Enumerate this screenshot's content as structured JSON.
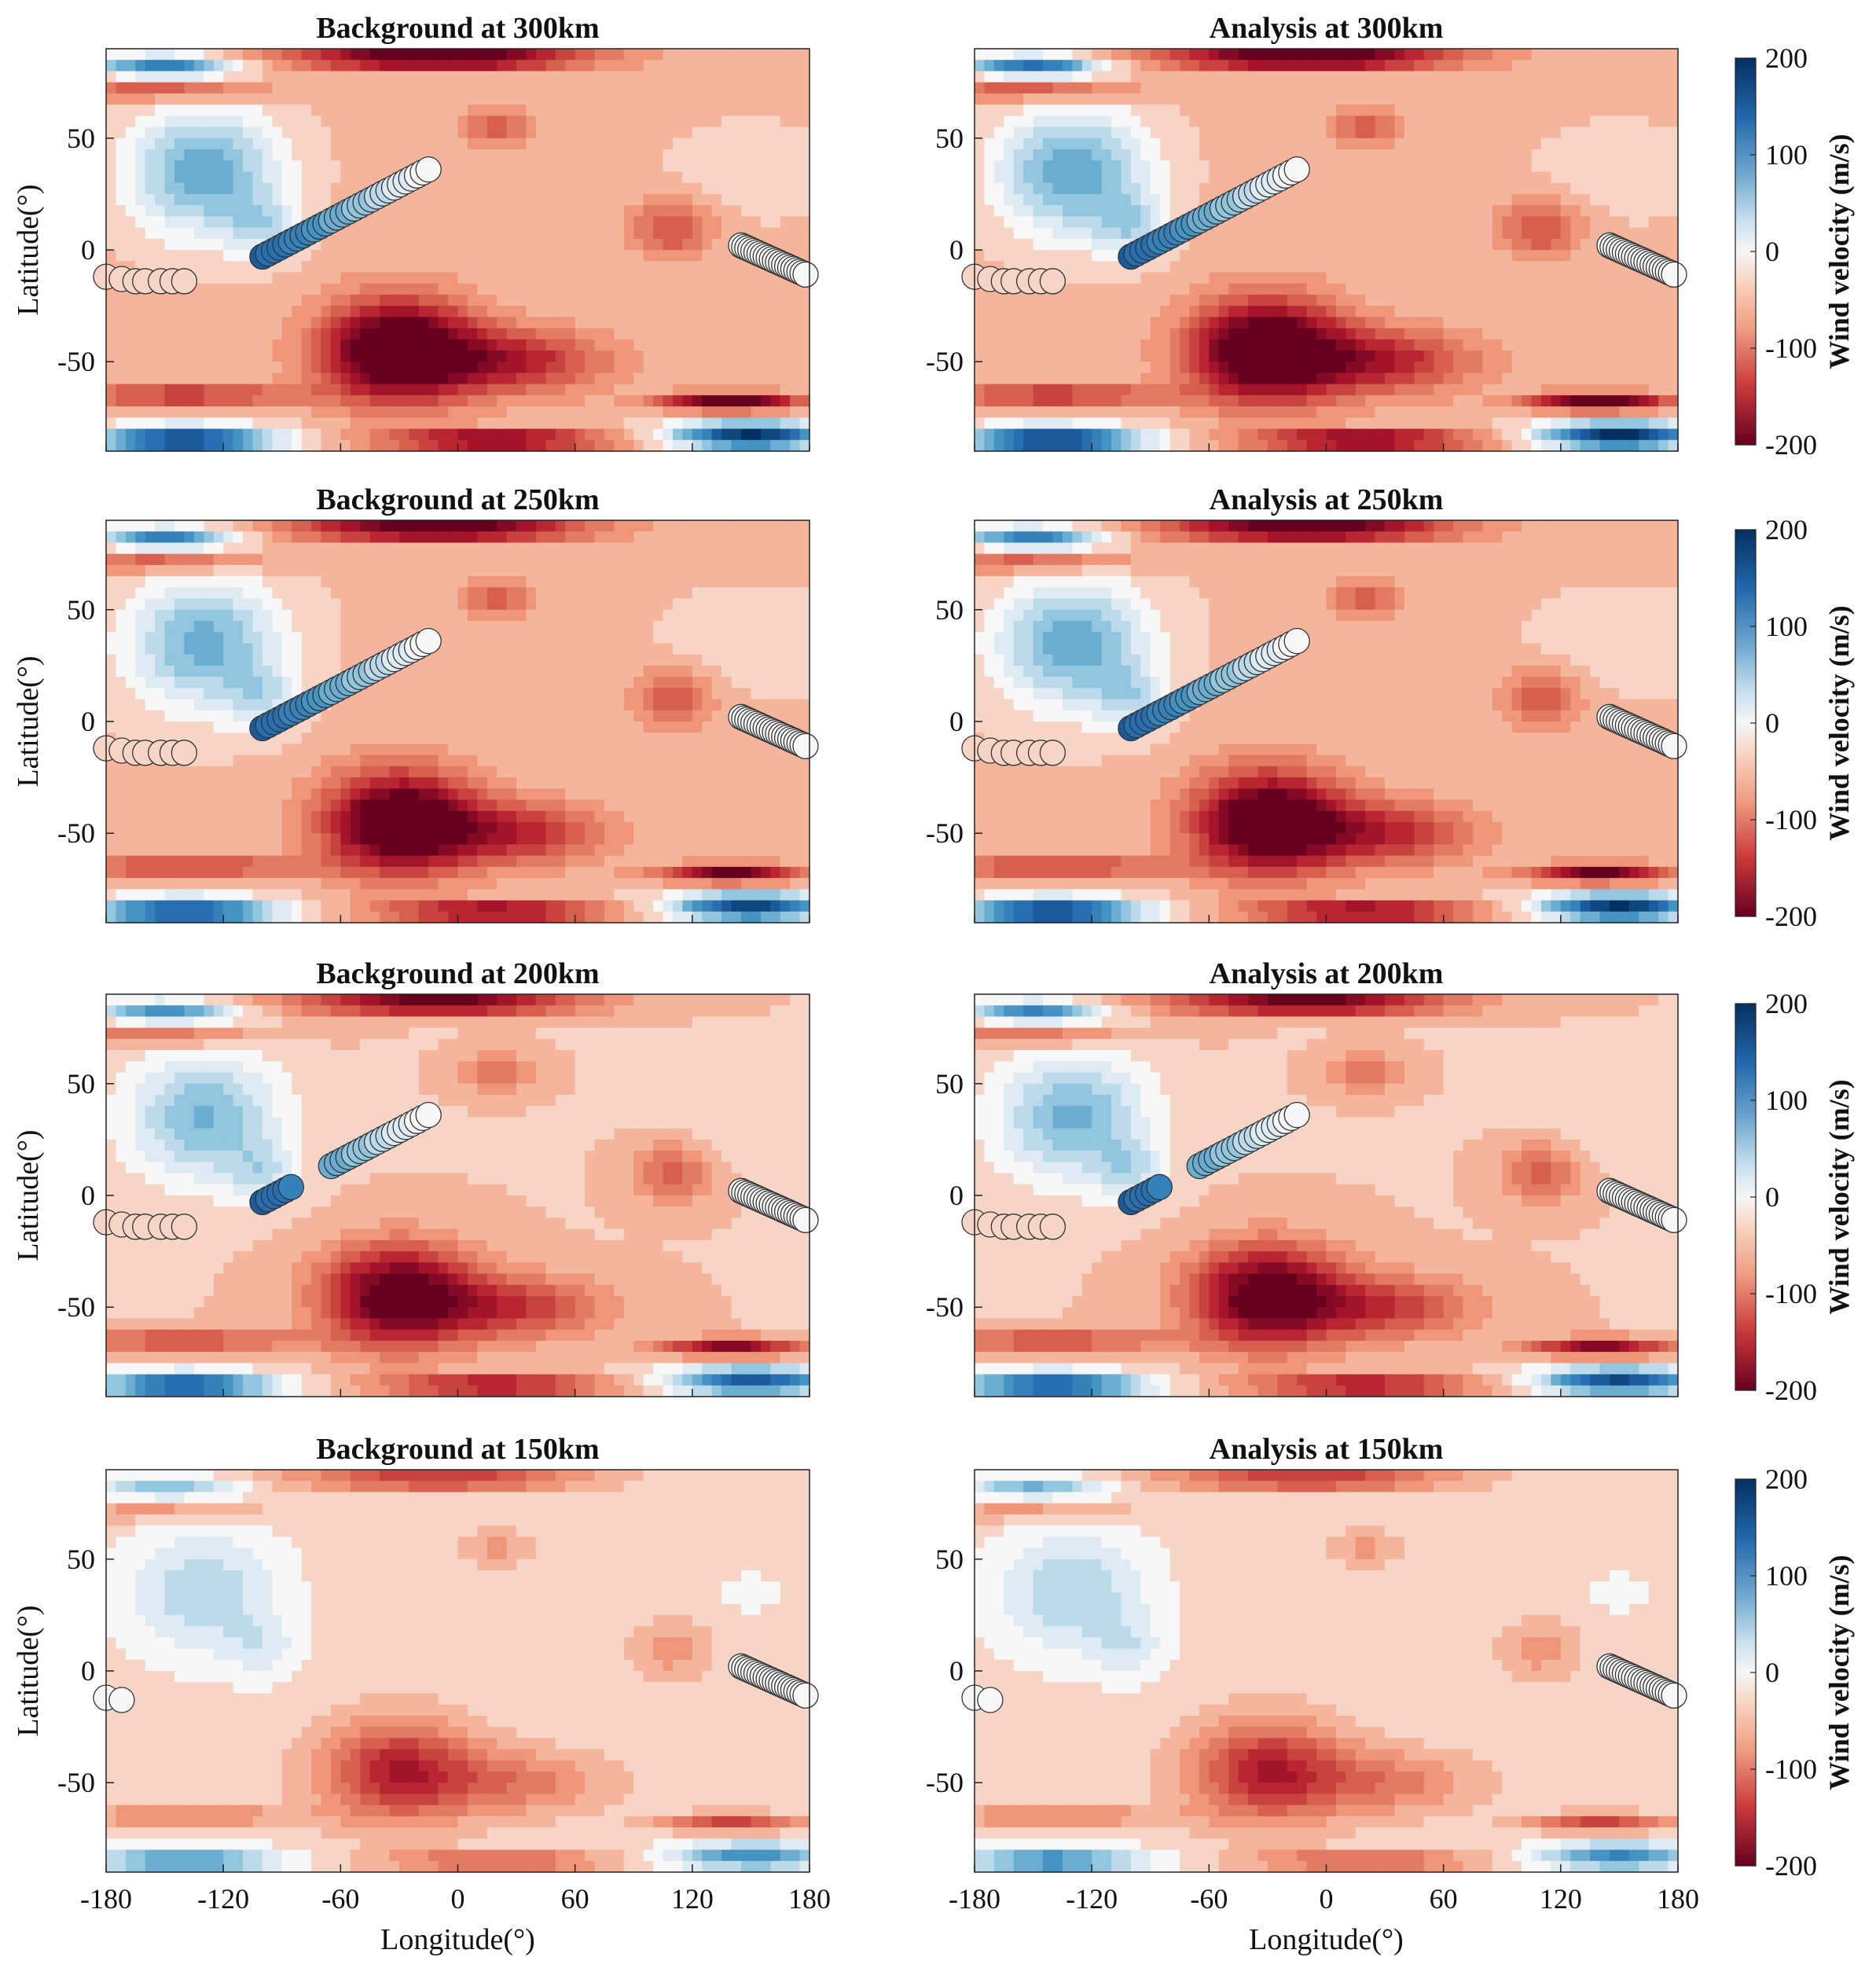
{
  "chart_data": {
    "type": "heatmap",
    "description_units": "Wind velocity (m/s)",
    "common": {
      "xlabel": "Longitude(°)",
      "ylabel": "Latitude(°)",
      "xlim": [
        -180,
        180
      ],
      "ylim": [
        -90,
        90
      ],
      "xticks": [
        -180,
        -120,
        -60,
        0,
        60,
        120,
        180
      ],
      "xtick_labels": [
        "-180",
        "-120",
        "-60",
        "0",
        "60",
        "120",
        "180"
      ],
      "yticks": [
        50,
        0,
        -50
      ],
      "ytick_labels": [
        "50",
        "0",
        "-50"
      ],
      "colorbar": {
        "label": "Wind velocity (m/s)",
        "range": [
          -200,
          200
        ],
        "ticks": [
          200,
          100,
          0,
          -100,
          -200
        ],
        "tick_labels": [
          "200",
          "100",
          "0",
          "-100",
          "-200"
        ],
        "colormap": "red-white-blue",
        "colors": {
          "high": "#053061",
          "mid": "#f7f7f7",
          "low": "#67001f"
        }
      }
    },
    "rows": [
      {
        "altitude": "300km",
        "intensity": 1.0,
        "panels": [
          {
            "title": "Background at 300km"
          },
          {
            "title": "Analysis at 300km"
          }
        ],
        "track_gaps": []
      },
      {
        "altitude": "250km",
        "intensity": 0.95,
        "panels": [
          {
            "title": "Background at 250km"
          },
          {
            "title": "Analysis at 250km"
          }
        ],
        "track_gaps": []
      },
      {
        "altitude": "200km",
        "intensity": 0.85,
        "panels": [
          {
            "title": "Background at 200km"
          },
          {
            "title": "Analysis at 200km"
          }
        ],
        "track_gaps": [
          [
            -85,
            -65
          ]
        ]
      },
      {
        "altitude": "150km",
        "intensity": 0.55,
        "panels": [
          {
            "title": "Background at 150km"
          },
          {
            "title": "Analysis at 150km"
          }
        ],
        "track_gaps": [
          [
            -160,
            -10
          ]
        ]
      }
    ],
    "wind_field_blobs_lonlat_value": [
      {
        "lon": -130,
        "lat": 35,
        "slon": 38,
        "slat": 28,
        "value": 120
      },
      {
        "lon": -100,
        "lat": 10,
        "slon": 18,
        "slat": 14,
        "value": 60
      },
      {
        "lon": -30,
        "lat": -45,
        "slon": 38,
        "slat": 22,
        "value": -230
      },
      {
        "lon": 30,
        "lat": -50,
        "slon": 45,
        "slat": 14,
        "value": -110
      },
      {
        "lon": 110,
        "lat": 10,
        "slon": 20,
        "slat": 13,
        "value": -80
      },
      {
        "lon": 20,
        "lat": 55,
        "slon": 18,
        "slat": 8,
        "value": -70
      },
      {
        "lon": 150,
        "lat": 35,
        "slon": 40,
        "slat": 20,
        "value": 20
      },
      {
        "lon": -10,
        "lat": 86,
        "slon": 70,
        "slat": 5,
        "value": -220
      },
      {
        "lon": -150,
        "lat": 82,
        "slon": 35,
        "slat": 5,
        "value": 160
      },
      {
        "lon": -150,
        "lat": 72,
        "slon": 50,
        "slat": 5,
        "value": -80
      },
      {
        "lon": -140,
        "lat": -85,
        "slon": 45,
        "slat": 6,
        "value": 230
      },
      {
        "lon": 150,
        "lat": -83,
        "slon": 40,
        "slat": 6,
        "value": 230
      },
      {
        "lon": 20,
        "lat": -85,
        "slon": 55,
        "slat": 4,
        "value": -180
      },
      {
        "lon": 140,
        "lat": -68,
        "slon": 35,
        "slat": 4,
        "value": -180
      },
      {
        "lon": -140,
        "lat": -65,
        "slon": 60,
        "slat": 5,
        "value": -100
      }
    ],
    "background_value": -35,
    "observation_tracks": {
      "marker": "circle",
      "track_west": {
        "lon": [
          -180,
          -172,
          -165,
          -160,
          -152,
          -146,
          -140
        ],
        "lat": [
          -12,
          -13,
          -14,
          -14,
          -14,
          -14,
          -14
        ]
      },
      "track_center": {
        "lon_start": -100,
        "lat_start": -3,
        "lon_end": -15,
        "lat_end": 36,
        "count": 30
      },
      "track_east": {
        "lon_start": 145,
        "lat_start": 2,
        "lon_end": 178,
        "lat_end": -11,
        "count": 22
      }
    }
  }
}
